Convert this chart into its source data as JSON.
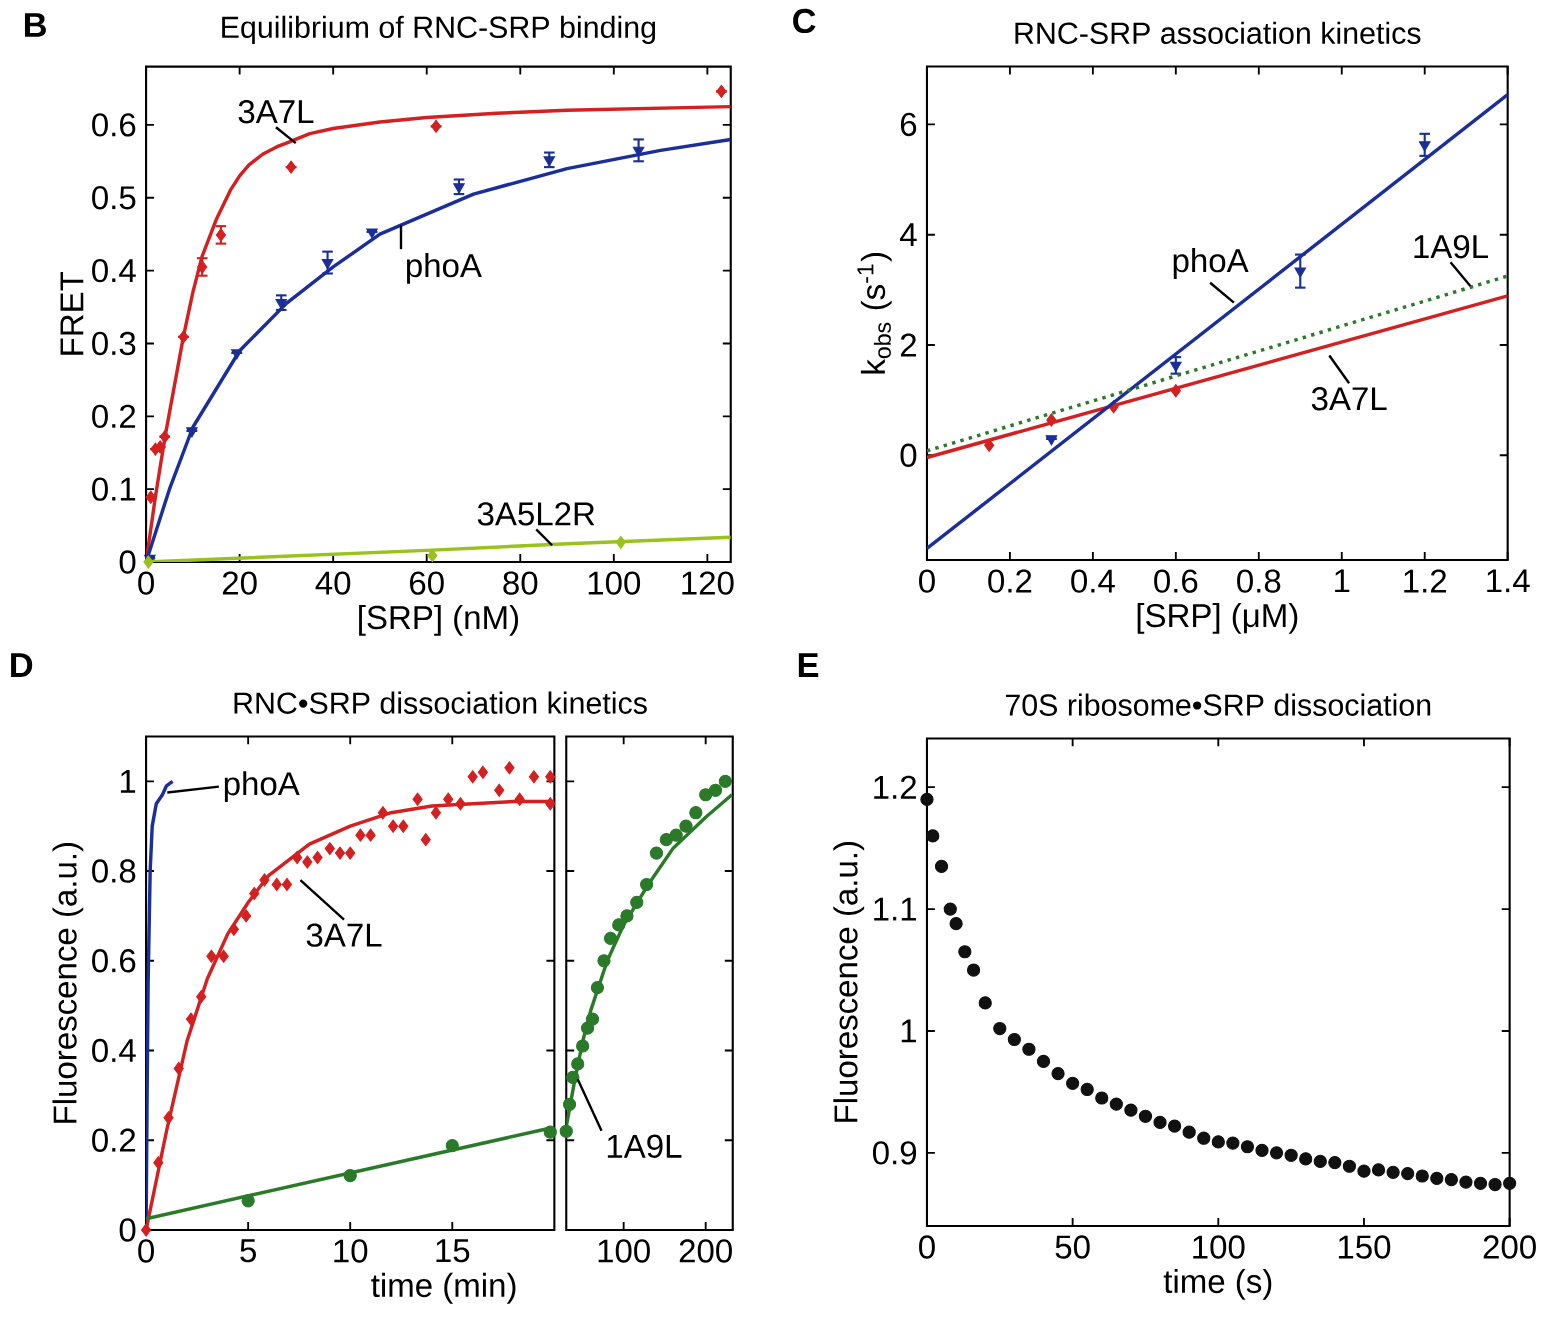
{
  "chart_data": [
    {
      "type": "scatter",
      "title": "Equilibrium of RNC-SRP binding",
      "xlabel": "[SRP] (nM)",
      "ylabel": "FRET",
      "xlim": [
        0,
        125
      ],
      "ylim": [
        0,
        0.68
      ],
      "xticks": [
        0,
        20,
        40,
        60,
        80,
        100,
        120
      ],
      "yticks": [
        0,
        0.1,
        0.2,
        0.3,
        0.4,
        0.5,
        0.6
      ],
      "series": [
        {
          "marker": "diamond",
          "color": "#d42020",
          "x": [
            1,
            2,
            3,
            4,
            8,
            12,
            16,
            31,
            62,
            123
          ],
          "values": [
            0.089,
            0.155,
            0.158,
            0.172,
            0.309,
            0.405,
            0.449,
            0.542,
            0.598,
            0.646
          ],
          "errors": [
            null,
            null,
            null,
            null,
            null,
            0.012,
            0.012,
            null,
            null,
            null
          ]
        },
        {
          "type": "line",
          "color": "#d42020",
          "x": [
            0,
            2,
            4,
            6,
            8,
            10,
            12,
            15,
            18,
            20,
            22,
            25,
            28,
            30,
            35,
            40,
            50,
            60,
            75,
            90,
            125
          ],
          "values": [
            0,
            0.09,
            0.17,
            0.24,
            0.31,
            0.37,
            0.42,
            0.47,
            0.51,
            0.53,
            0.545,
            0.56,
            0.57,
            0.575,
            0.588,
            0.595,
            0.604,
            0.61,
            0.616,
            0.62,
            0.625
          ]
        },
        {
          "marker": "triangle",
          "color": "#1a2f99",
          "x": [
            0.8,
            9.8,
            19.4,
            28.9,
            38.8,
            48.3,
            66.9,
            86.2,
            105.3
          ],
          "values": [
            0.005,
            0.18,
            0.287,
            0.356,
            0.411,
            0.453,
            0.515,
            0.552,
            0.565
          ],
          "errors": [
            null,
            null,
            null,
            0.01,
            0.015,
            null,
            0.01,
            0.01,
            0.015
          ]
        },
        {
          "type": "line",
          "color": "#1a2f99",
          "x": [
            0,
            5,
            10,
            20,
            30,
            40,
            50,
            70,
            90,
            110,
            125
          ],
          "values": [
            0,
            0.1,
            0.185,
            0.29,
            0.355,
            0.405,
            0.45,
            0.505,
            0.54,
            0.565,
            0.58
          ]
        },
        {
          "marker": "diamond",
          "color": "#99c21c",
          "x": [
            0.5,
            61.2,
            101.5
          ],
          "values": [
            0,
            0.009,
            0.027
          ]
        },
        {
          "type": "line",
          "color": "#99c21c",
          "x": [
            0,
            30,
            60,
            90,
            125
          ],
          "values": [
            0,
            0.008,
            0.016,
            0.025,
            0.034
          ]
        }
      ],
      "annotations": [
        "B",
        {
          "text": "3A7L",
          "x": 32,
          "y": 0.575
        },
        {
          "text": "phoA",
          "x": 54.5,
          "y": 0.462
        },
        {
          "text": "3A5L2R",
          "x": 86.8,
          "y": 0.023
        }
      ]
    },
    {
      "type": "scatter",
      "title": "RNC-SRP association kinetics",
      "xlabel": "[SRP] (μM)",
      "ylabel": "k$_{obs}$ (s$^{-1}$)",
      "xlim": [
        0,
        1.4
      ],
      "ylim": [
        -1.9,
        7.05
      ],
      "xticks": [
        0,
        0.2,
        0.4,
        0.6,
        0.8,
        1,
        1.2,
        1.4
      ],
      "yticks": [
        0,
        2,
        4,
        6
      ],
      "series": [
        {
          "marker": "diamond",
          "color": "#d42020",
          "x": [
            0.15,
            0.3,
            0.45,
            0.6
          ],
          "values": [
            0.18,
            0.64,
            0.88,
            1.17
          ]
        },
        {
          "type": "line",
          "color": "#d42020",
          "x": [
            0,
            1.4
          ],
          "values": [
            -0.04,
            2.89
          ]
        },
        {
          "marker": "triangle",
          "color": "#1a2f99",
          "x": [
            0.3,
            0.6,
            0.9,
            1.2
          ],
          "values": [
            0.3,
            1.63,
            3.34,
            5.63
          ],
          "errors": [
            null,
            0.15,
            0.3,
            0.2
          ]
        },
        {
          "type": "line",
          "color": "#1a2f99",
          "x": [
            0,
            1.4
          ],
          "values": [
            -1.69,
            6.54
          ]
        },
        {
          "type": "line",
          "line_style": "dotted",
          "color": "#2a7a2a",
          "x": [
            0,
            1.4
          ],
          "values": [
            0.08,
            3.25
          ]
        }
      ],
      "annotations": [
        "C",
        {
          "text": "phoA",
          "x": 0.74,
          "y": 2.77
        },
        {
          "text": "1A9L",
          "x": 1.31,
          "y": 3.07
        },
        {
          "text": "3A7L",
          "x": 0.97,
          "y": 1.81
        }
      ]
    },
    {
      "type": "scatter",
      "title": "RNC•SRP dissociation kinetics",
      "xlabel": "time (min)",
      "ylabel": "Fluorescence (a.u.)",
      "xlim": [
        0,
        20
      ],
      "ylim": [
        0,
        1.1
      ],
      "xticks": [
        0,
        5,
        10,
        15
      ],
      "yticks": [
        0,
        0.2,
        0.4,
        0.6,
        0.8,
        1
      ],
      "series": [
        {
          "type": "line",
          "color": "#1a2f99",
          "x": [
            0,
            0.05,
            0.1,
            0.2,
            0.3,
            0.5,
            0.8,
            1,
            1.3
          ],
          "values": [
            0,
            0.3,
            0.55,
            0.8,
            0.9,
            0.95,
            0.97,
            0.99,
            1.0
          ]
        },
        {
          "marker": "diamond",
          "color": "#d42020",
          "x": [
            0,
            0.6,
            1.1,
            1.6,
            2.2,
            2.7,
            3.2,
            3.8,
            4.3,
            4.9,
            5.3,
            5.8,
            6.4,
            6.9,
            7.4,
            7.9,
            8.4,
            9.0,
            9.5,
            10,
            10.5,
            11,
            11.6,
            12.1,
            12.6,
            13.3,
            13.7,
            14.2,
            14.8,
            15.4,
            16,
            16.5,
            17.3,
            17.8,
            18.3,
            19,
            19.8,
            19.8
          ],
          "values": [
            0,
            0.15,
            0.25,
            0.36,
            0.47,
            0.52,
            0.61,
            0.61,
            0.67,
            0.7,
            0.75,
            0.78,
            0.77,
            0.77,
            0.83,
            0.82,
            0.83,
            0.85,
            0.84,
            0.84,
            0.88,
            0.88,
            0.93,
            0.9,
            0.9,
            0.96,
            0.87,
            0.93,
            0.96,
            0.95,
            1.01,
            1.02,
            0.98,
            1.03,
            0.96,
            1.01,
            1.01,
            0.95
          ]
        },
        {
          "type": "line",
          "color": "#d42020",
          "x": [
            0,
            1,
            2,
            3,
            4,
            5,
            6,
            8,
            10,
            12,
            14,
            16,
            18,
            20
          ],
          "values": [
            0,
            0.22,
            0.42,
            0.56,
            0.66,
            0.73,
            0.79,
            0.86,
            0.9,
            0.93,
            0.945,
            0.95,
            0.955,
            0.955
          ]
        },
        {
          "marker": "circle",
          "color": "#2a7a2a",
          "x": [
            5,
            10,
            15,
            19.8
          ],
          "values": [
            0.065,
            0.121,
            0.188,
            0.218
          ]
        },
        {
          "type": "line",
          "color": "#2a7a2a",
          "x": [
            0,
            19.6
          ],
          "values": [
            0.025,
            0.225
          ]
        }
      ],
      "annotations": [
        "D",
        {
          "text": "phoA",
          "x": 1.04,
          "y": 0.975
        },
        {
          "text": "3A7L",
          "x": 7.56,
          "y": 0.78
        }
      ]
    },
    {
      "type": "scatter",
      "xlim": [
        30,
        233
      ],
      "ylim": [
        0,
        1.1
      ],
      "xticks": [
        100,
        200
      ],
      "yticks": [
        0,
        0.2,
        0.4,
        0.6,
        0.8,
        1
      ],
      "tick_labels": "x",
      "series": [
        {
          "marker": "circle",
          "color": "#2a7a2a",
          "x": [
            30,
            34,
            38,
            44,
            50,
            56,
            62,
            68,
            76,
            84,
            94,
            104,
            116,
            128,
            140,
            152,
            164,
            176,
            188,
            200,
            212,
            224
          ],
          "values": [
            0.22,
            0.28,
            0.34,
            0.37,
            0.41,
            0.45,
            0.47,
            0.54,
            0.6,
            0.65,
            0.68,
            0.7,
            0.73,
            0.77,
            0.84,
            0.87,
            0.88,
            0.9,
            0.93,
            0.97,
            0.98,
            1.0
          ]
        },
        {
          "type": "line",
          "color": "#2a7a2a",
          "x": [
            30,
            40,
            50,
            60,
            80,
            100,
            130,
            160,
            200,
            232
          ],
          "values": [
            0.23,
            0.33,
            0.42,
            0.49,
            0.6,
            0.68,
            0.77,
            0.85,
            0.92,
            0.97
          ]
        }
      ],
      "annotations": [
        {
          "text": "1A9L",
          "x": 44,
          "y": 0.336
        }
      ]
    },
    {
      "type": "scatter",
      "title": "70S ribosome•SRP dissociation",
      "xlabel": "time (s)",
      "ylabel": "Fluorescence (a.u.)",
      "xlim": [
        0,
        200
      ],
      "ylim": [
        0.84,
        1.24
      ],
      "xticks": [
        0,
        50,
        100,
        150,
        200
      ],
      "yticks": [
        0.9,
        1,
        1.1,
        1.2
      ],
      "series": [
        {
          "marker": "circle",
          "color": "#111111",
          "x": [
            0,
            2,
            5,
            8,
            10,
            13,
            16,
            20,
            25,
            30,
            35,
            40,
            45,
            50,
            55,
            60,
            65,
            70,
            75,
            80,
            85,
            90,
            95,
            100,
            105,
            110,
            115,
            120,
            125,
            130,
            135,
            140,
            145,
            150,
            155,
            160,
            165,
            170,
            175,
            180,
            185,
            190,
            195,
            200
          ],
          "values": [
            1.19,
            1.16,
            1.135,
            1.1,
            1.088,
            1.065,
            1.05,
            1.023,
            1.002,
            0.993,
            0.985,
            0.975,
            0.965,
            0.957,
            0.952,
            0.945,
            0.94,
            0.935,
            0.93,
            0.925,
            0.922,
            0.917,
            0.912,
            0.909,
            0.908,
            0.905,
            0.902,
            0.9,
            0.898,
            0.895,
            0.893,
            0.892,
            0.889,
            0.885,
            0.886,
            0.884,
            0.883,
            0.881,
            0.879,
            0.878,
            0.876,
            0.875,
            0.874,
            0.875
          ]
        }
      ],
      "annotations": [
        "E"
      ]
    }
  ]
}
